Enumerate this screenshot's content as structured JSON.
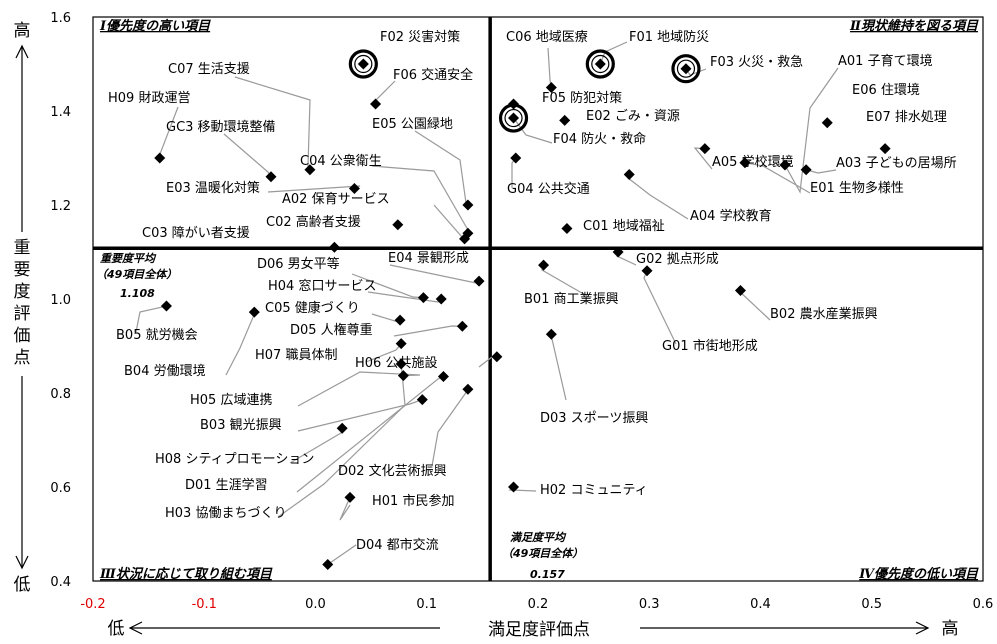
{
  "chart_data": {
    "type": "scatter",
    "xlabel": "満足度評価点",
    "ylabel": "重要度評価点",
    "x_low_label": "低",
    "x_high_label": "高",
    "y_low_label": "低",
    "y_high_label": "高",
    "xlim": [
      -0.2,
      0.6
    ],
    "ylim": [
      0.4,
      1.6
    ],
    "xticks": [
      "-0.2",
      "-0.1",
      "0.0",
      "0.1",
      "0.2",
      "0.3",
      "0.4",
      "0.5",
      "0.6"
    ],
    "yticks": [
      "0.4",
      "0.6",
      "0.8",
      "1.0",
      "1.2",
      "1.4",
      "1.6"
    ],
    "grid": false,
    "quadrants": [
      {
        "label": "Ⅰ優先度の高い項目"
      },
      {
        "label": "Ⅱ現状維持を図る項目"
      },
      {
        "label": "Ⅲ状況に応じて取り組む項目"
      },
      {
        "label": "Ⅳ優先度の低い項目"
      }
    ],
    "averages": {
      "importance": {
        "title": "重要度平均",
        "note": "（49項目全体）",
        "value": 1.108,
        "text": "1.108"
      },
      "satisfaction": {
        "title": "満足度平均",
        "note": "（49項目全体）",
        "value": 0.157,
        "text": "0.157"
      }
    },
    "points": [
      {
        "label": "F02 災害対策",
        "x": 0.043,
        "y": 1.5,
        "circled": true
      },
      {
        "label": "F06 交通安全",
        "x": 0.054,
        "y": 1.415
      },
      {
        "label": "C07 生活支援",
        "x": -0.005,
        "y": 1.275
      },
      {
        "label": "H09 財政運営",
        "x": -0.14,
        "y": 1.3
      },
      {
        "label": "GC3 移動環境整備",
        "x": -0.04,
        "y": 1.26
      },
      {
        "label": "E05 公園緑地",
        "x": 0.137,
        "y": 1.2
      },
      {
        "label": "C04 公衆衛生",
        "x": 0.137,
        "y": 1.14
      },
      {
        "label": "E03 温暖化対策",
        "x": 0.035,
        "y": 1.235
      },
      {
        "label": "A02 保育サービス",
        "x": 0.134,
        "y": 1.128
      },
      {
        "label": "C02 高齢者支援",
        "x": 0.074,
        "y": 1.158
      },
      {
        "label": "C03 障がい者支援",
        "x": 0.017,
        "y": 1.11
      },
      {
        "label": "C06 地域医療",
        "x": 0.212,
        "y": 1.45
      },
      {
        "label": "F01 地域防災",
        "x": 0.256,
        "y": 1.5,
        "circled": true
      },
      {
        "label": "F03 火災・救急",
        "x": 0.333,
        "y": 1.49,
        "circled": true
      },
      {
        "label": "A01 子育て環境",
        "x": 0.422,
        "y": 1.285
      },
      {
        "label": "E06 住環境",
        "x": 0.46,
        "y": 1.375
      },
      {
        "label": "F05 防犯対策",
        "x": 0.178,
        "y": 1.415
      },
      {
        "label": "E02 ごみ・資源",
        "x": 0.224,
        "y": 1.38
      },
      {
        "label": "E07 排水処理",
        "x": 0.512,
        "y": 1.32
      },
      {
        "label": "F04 防火・救命",
        "x": 0.178,
        "y": 1.385,
        "circled": true
      },
      {
        "label": "A03 子どもの居場所",
        "x": 0.441,
        "y": 1.275
      },
      {
        "label": "A05 学校環境",
        "x": 0.35,
        "y": 1.32
      },
      {
        "label": "E01 生物多様性",
        "x": 0.386,
        "y": 1.29
      },
      {
        "label": "G04 公共交通",
        "x": 0.18,
        "y": 1.3
      },
      {
        "label": "A04 学校教育",
        "x": 0.282,
        "y": 1.265
      },
      {
        "label": "C01 地域福祉",
        "x": 0.226,
        "y": 1.15
      },
      {
        "label": "D06 男女平等",
        "x": 0.097,
        "y": 1.003
      },
      {
        "label": "E04 景観形成",
        "x": 0.147,
        "y": 1.038
      },
      {
        "label": "H04 窓口サービス",
        "x": 0.113,
        "y": 1.0
      },
      {
        "label": "C05 健康づくり",
        "x": 0.076,
        "y": 0.955
      },
      {
        "label": "B05 就労機会",
        "x": -0.134,
        "y": 0.985
      },
      {
        "label": "D05 人権尊重",
        "x": 0.132,
        "y": 0.942
      },
      {
        "label": "B04 労働環境",
        "x": -0.055,
        "y": 0.972
      },
      {
        "label": "H07 職員体制",
        "x": 0.077,
        "y": 0.905
      },
      {
        "label": "H06 公共施設",
        "x": 0.163,
        "y": 0.877
      },
      {
        "label": "H05 広域連携",
        "x": 0.079,
        "y": 0.837
      },
      {
        "label": "B03 観光振興",
        "x": 0.096,
        "y": 0.786
      },
      {
        "label": "H08 シティプロモーション",
        "x": 0.024,
        "y": 0.725
      },
      {
        "label": "D01 生涯学習",
        "x": 0.115,
        "y": 0.835
      },
      {
        "label": "D02 文化芸術振興",
        "x": 0.137,
        "y": 0.808
      },
      {
        "label": "H01 市民参加",
        "x": 0.031,
        "y": 0.578
      },
      {
        "label": "H03 協働まちづくり",
        "x": 0.077,
        "y": 0.862
      },
      {
        "label": "D04 都市交流",
        "x": 0.011,
        "y": 0.435
      },
      {
        "label": "G02 拠点形成",
        "x": 0.272,
        "y": 1.1
      },
      {
        "label": "B01 商工業振興",
        "x": 0.205,
        "y": 1.072
      },
      {
        "label": "B02 農水産業振興",
        "x": 0.382,
        "y": 1.018
      },
      {
        "label": "G01 市街地形成",
        "x": 0.298,
        "y": 1.06
      },
      {
        "label": "D03 スポーツ振興",
        "x": 0.212,
        "y": 0.925
      },
      {
        "label": "H02 コミュニティ",
        "x": 0.178,
        "y": 0.6
      }
    ]
  }
}
